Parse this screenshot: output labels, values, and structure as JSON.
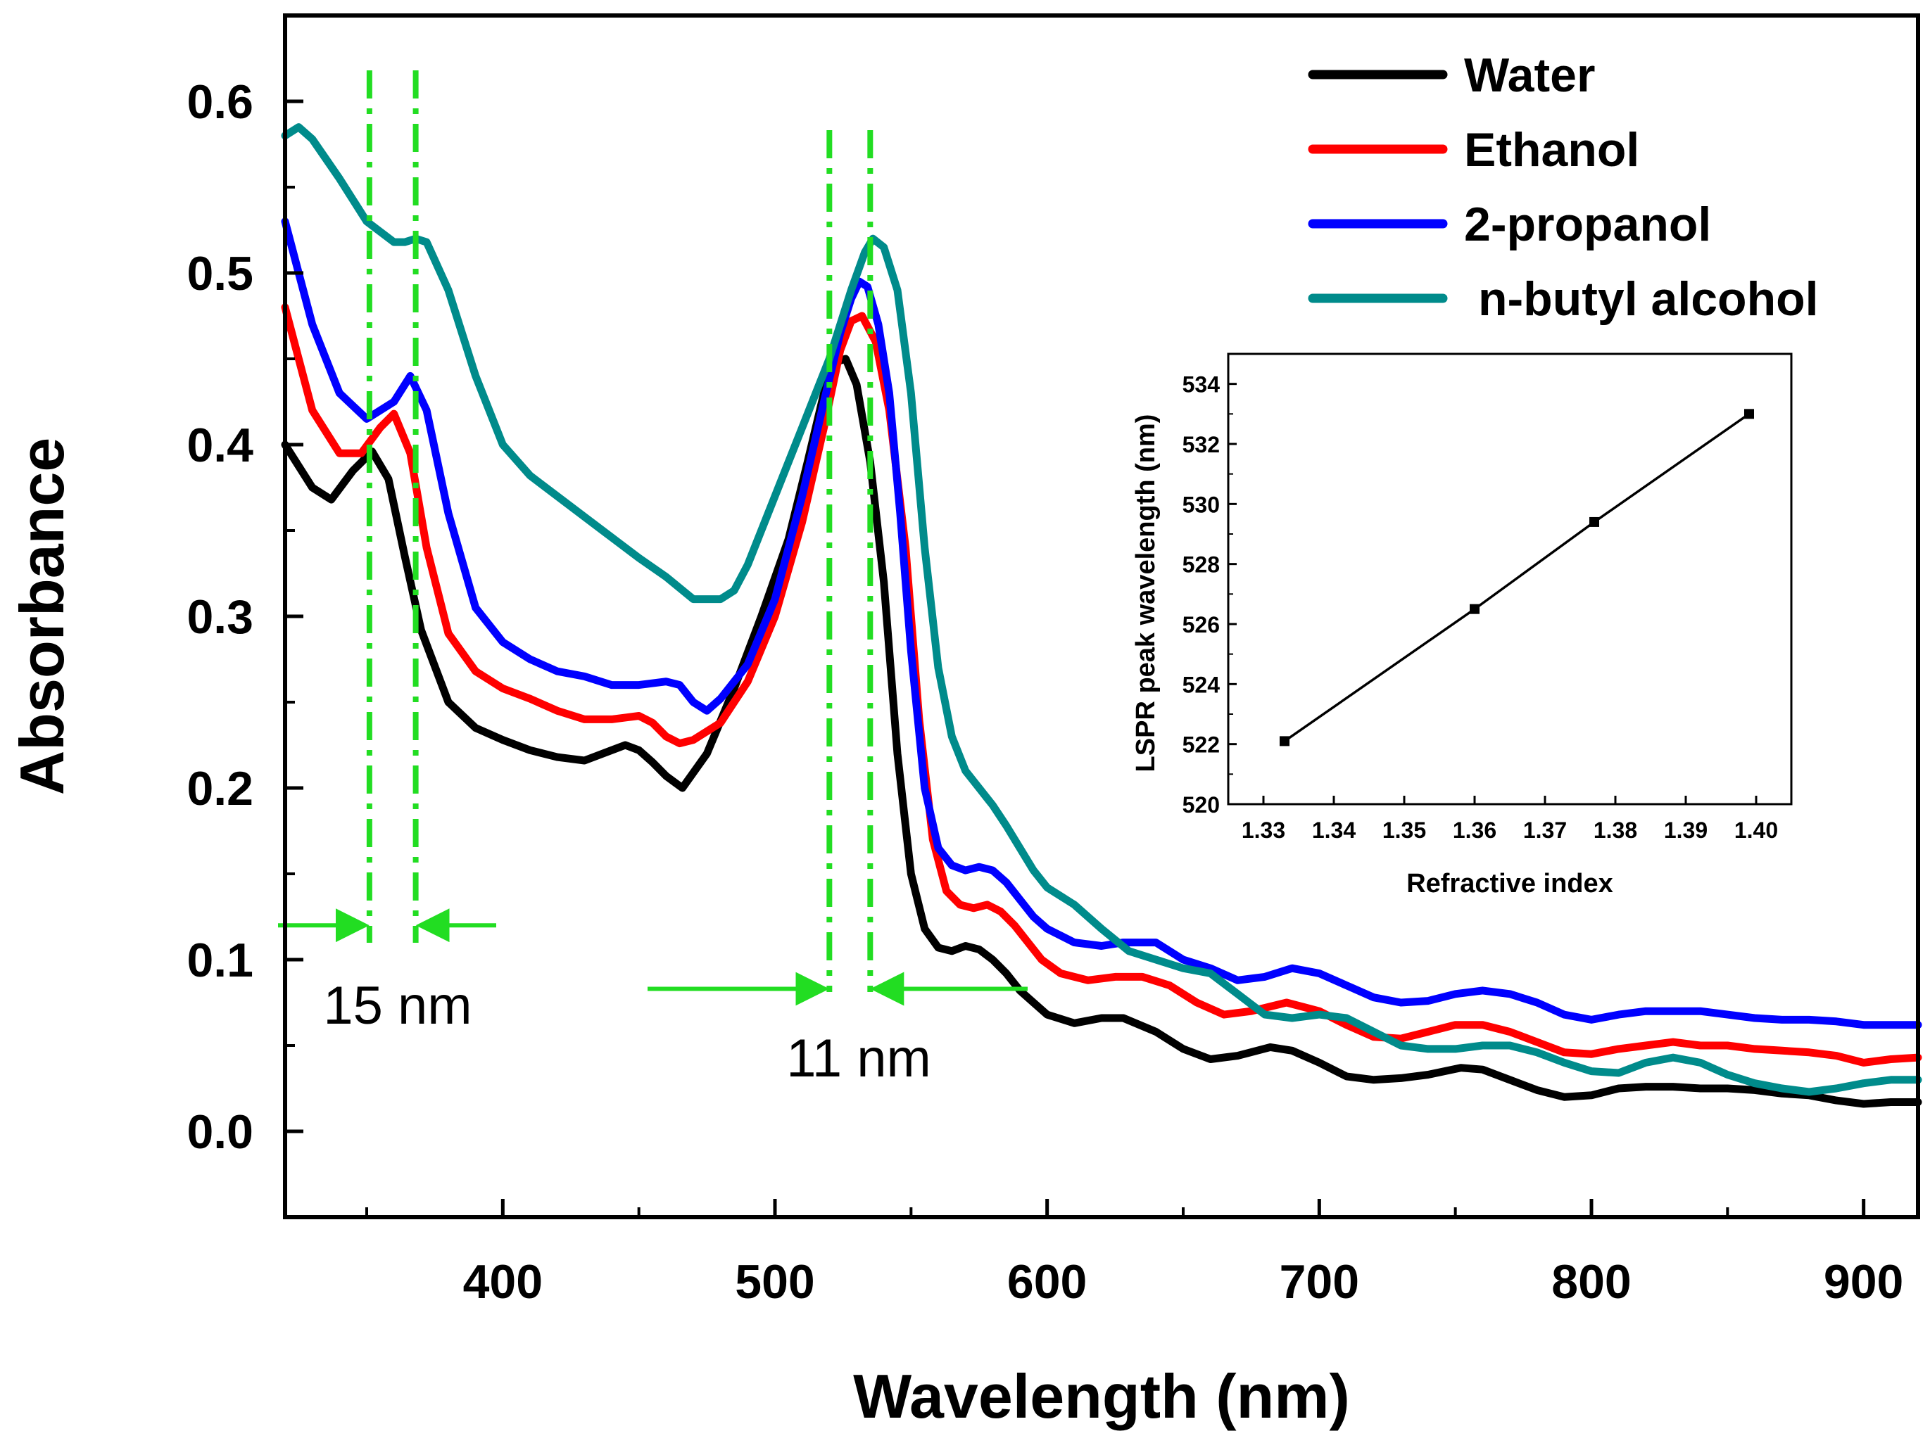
{
  "chart_data": [
    {
      "type": "line",
      "title": "",
      "xlabel": "Wavelength (nm)",
      "ylabel": "Absorbance",
      "xlim": [
        320,
        920
      ],
      "ylim": [
        -0.05,
        0.65
      ],
      "x_ticks": [
        400,
        500,
        600,
        700,
        800,
        900
      ],
      "x_tick_labels": [
        "400",
        "500",
        "600",
        "700",
        "800",
        "900"
      ],
      "y_ticks": [
        0.0,
        0.1,
        0.2,
        0.3,
        0.4,
        0.5,
        0.6
      ],
      "y_tick_labels": [
        "0.0",
        "0.1",
        "0.2",
        "0.3",
        "0.4",
        "0.5",
        "0.6"
      ],
      "legend_position": "top-right",
      "series": [
        {
          "name": "Water",
          "color": "#000000",
          "x": [
            320,
            330,
            337,
            345,
            352,
            358,
            364,
            370,
            380,
            390,
            400,
            410,
            420,
            430,
            440,
            445,
            450,
            455,
            460,
            466,
            475,
            485,
            495,
            505,
            512,
            518,
            522,
            526,
            530,
            535,
            540,
            545,
            550,
            555,
            560,
            565,
            570,
            575,
            580,
            585,
            590,
            595,
            600,
            610,
            620,
            628,
            640,
            650,
            660,
            670,
            682,
            690,
            700,
            710,
            720,
            730,
            740,
            752,
            760,
            770,
            780,
            790,
            800,
            810,
            820,
            830,
            840,
            850,
            860,
            870,
            880,
            890,
            900,
            910,
            920
          ],
          "values": [
            0.4,
            0.375,
            0.368,
            0.385,
            0.396,
            0.38,
            0.335,
            0.292,
            0.25,
            0.235,
            0.228,
            0.222,
            0.218,
            0.216,
            0.222,
            0.225,
            0.222,
            0.215,
            0.207,
            0.2,
            0.22,
            0.258,
            0.3,
            0.345,
            0.39,
            0.43,
            0.448,
            0.45,
            0.435,
            0.39,
            0.32,
            0.22,
            0.15,
            0.118,
            0.107,
            0.105,
            0.108,
            0.106,
            0.1,
            0.092,
            0.082,
            0.075,
            0.068,
            0.063,
            0.066,
            0.066,
            0.058,
            0.048,
            0.042,
            0.044,
            0.049,
            0.047,
            0.04,
            0.032,
            0.03,
            0.031,
            0.033,
            0.037,
            0.036,
            0.03,
            0.024,
            0.02,
            0.021,
            0.025,
            0.026,
            0.026,
            0.025,
            0.025,
            0.024,
            0.022,
            0.021,
            0.018,
            0.016,
            0.017,
            0.017
          ]
        },
        {
          "name": "Ethanol",
          "color": "#ff0000",
          "x": [
            320,
            330,
            340,
            348,
            355,
            360,
            366,
            372,
            380,
            390,
            400,
            410,
            420,
            430,
            440,
            450,
            455,
            460,
            465,
            470,
            480,
            490,
            500,
            510,
            518,
            524,
            528,
            532,
            537,
            542,
            548,
            553,
            558,
            563,
            568,
            573,
            578,
            583,
            588,
            593,
            598,
            605,
            615,
            625,
            635,
            645,
            655,
            665,
            675,
            688,
            700,
            710,
            720,
            730,
            740,
            750,
            760,
            770,
            780,
            790,
            800,
            810,
            820,
            830,
            840,
            850,
            860,
            870,
            880,
            890,
            900,
            910,
            920
          ],
          "values": [
            0.48,
            0.42,
            0.395,
            0.395,
            0.41,
            0.418,
            0.395,
            0.34,
            0.29,
            0.268,
            0.258,
            0.252,
            0.245,
            0.24,
            0.24,
            0.242,
            0.238,
            0.23,
            0.226,
            0.228,
            0.238,
            0.262,
            0.3,
            0.355,
            0.41,
            0.455,
            0.472,
            0.475,
            0.46,
            0.42,
            0.34,
            0.24,
            0.17,
            0.14,
            0.132,
            0.13,
            0.132,
            0.128,
            0.12,
            0.11,
            0.1,
            0.092,
            0.088,
            0.09,
            0.09,
            0.085,
            0.075,
            0.068,
            0.07,
            0.075,
            0.07,
            0.062,
            0.055,
            0.054,
            0.058,
            0.062,
            0.062,
            0.058,
            0.052,
            0.046,
            0.045,
            0.048,
            0.05,
            0.052,
            0.05,
            0.05,
            0.048,
            0.047,
            0.046,
            0.044,
            0.04,
            0.042,
            0.043
          ]
        },
        {
          "name": "2-propanol",
          "color": "#0000ff",
          "x": [
            320,
            330,
            340,
            350,
            360,
            366,
            372,
            380,
            390,
            400,
            410,
            420,
            430,
            440,
            450,
            460,
            465,
            470,
            475,
            480,
            490,
            500,
            510,
            518,
            524,
            528,
            531,
            534,
            538,
            542,
            546,
            550,
            555,
            560,
            565,
            570,
            575,
            580,
            585,
            590,
            595,
            600,
            610,
            620,
            628,
            640,
            650,
            660,
            670,
            680,
            690,
            700,
            710,
            720,
            730,
            740,
            750,
            760,
            770,
            780,
            790,
            800,
            810,
            820,
            830,
            840,
            850,
            860,
            870,
            880,
            890,
            900,
            910,
            920
          ],
          "values": [
            0.53,
            0.47,
            0.43,
            0.415,
            0.425,
            0.44,
            0.42,
            0.36,
            0.305,
            0.285,
            0.275,
            0.268,
            0.265,
            0.26,
            0.26,
            0.262,
            0.26,
            0.25,
            0.245,
            0.252,
            0.272,
            0.31,
            0.37,
            0.425,
            0.465,
            0.485,
            0.495,
            0.492,
            0.47,
            0.43,
            0.36,
            0.28,
            0.2,
            0.165,
            0.155,
            0.152,
            0.154,
            0.152,
            0.145,
            0.135,
            0.125,
            0.118,
            0.11,
            0.108,
            0.11,
            0.11,
            0.1,
            0.095,
            0.088,
            0.09,
            0.095,
            0.092,
            0.085,
            0.078,
            0.075,
            0.076,
            0.08,
            0.082,
            0.08,
            0.075,
            0.068,
            0.065,
            0.068,
            0.07,
            0.07,
            0.07,
            0.068,
            0.066,
            0.065,
            0.065,
            0.064,
            0.062,
            0.062,
            0.062
          ]
        },
        {
          "name": "n-butyl alcohol",
          "color": "#008b8b",
          "x": [
            320,
            325,
            330,
            340,
            350,
            360,
            364,
            368,
            372,
            380,
            390,
            400,
            410,
            420,
            430,
            440,
            450,
            460,
            470,
            475,
            480,
            485,
            490,
            500,
            510,
            520,
            528,
            533,
            536,
            540,
            545,
            550,
            555,
            560,
            565,
            570,
            575,
            580,
            585,
            590,
            595,
            600,
            610,
            620,
            630,
            640,
            650,
            660,
            670,
            680,
            690,
            700,
            710,
            720,
            730,
            740,
            750,
            760,
            770,
            780,
            790,
            800,
            810,
            820,
            830,
            840,
            850,
            860,
            870,
            880,
            890,
            900,
            910,
            920
          ],
          "values": [
            0.58,
            0.585,
            0.578,
            0.555,
            0.53,
            0.518,
            0.518,
            0.52,
            0.518,
            0.49,
            0.44,
            0.4,
            0.382,
            0.37,
            0.358,
            0.346,
            0.334,
            0.323,
            0.31,
            0.31,
            0.31,
            0.315,
            0.33,
            0.37,
            0.41,
            0.45,
            0.49,
            0.512,
            0.52,
            0.515,
            0.49,
            0.43,
            0.34,
            0.27,
            0.23,
            0.21,
            0.2,
            0.19,
            0.178,
            0.165,
            0.152,
            0.142,
            0.132,
            0.118,
            0.105,
            0.1,
            0.095,
            0.092,
            0.08,
            0.068,
            0.066,
            0.068,
            0.066,
            0.058,
            0.05,
            0.048,
            0.048,
            0.05,
            0.05,
            0.046,
            0.04,
            0.035,
            0.034,
            0.04,
            0.043,
            0.04,
            0.033,
            0.028,
            0.025,
            0.023,
            0.025,
            0.028,
            0.03,
            0.03
          ]
        }
      ],
      "annotations": [
        {
          "label": "15 nm",
          "marker_x": [
            351,
            368
          ],
          "y": 0.12
        },
        {
          "label": "11 nm",
          "marker_x": [
            520,
            535
          ],
          "y": 0.083
        }
      ],
      "reference_line_color": "#22dd22"
    },
    {
      "type": "line",
      "title": "",
      "xlabel": "Refractive index",
      "ylabel": "LSPR peak wavelength (nm)",
      "xlim": [
        1.325,
        1.405
      ],
      "ylim": [
        520,
        535
      ],
      "x_ticks": [
        1.33,
        1.34,
        1.35,
        1.36,
        1.37,
        1.38,
        1.39,
        1.4
      ],
      "x_tick_labels": [
        "1.33",
        "1.34",
        "1.35",
        "1.36",
        "1.37",
        "1.38",
        "1.39",
        "1.40"
      ],
      "y_ticks": [
        520,
        522,
        524,
        526,
        528,
        530,
        532,
        534
      ],
      "y_tick_labels": [
        "520",
        "522",
        "524",
        "526",
        "528",
        "530",
        "532",
        "534"
      ],
      "series": [
        {
          "name": "LSPR peak",
          "color": "#000000",
          "x": [
            1.333,
            1.36,
            1.377,
            1.399
          ],
          "values": [
            522.1,
            526.5,
            529.4,
            533.0
          ]
        }
      ]
    }
  ]
}
